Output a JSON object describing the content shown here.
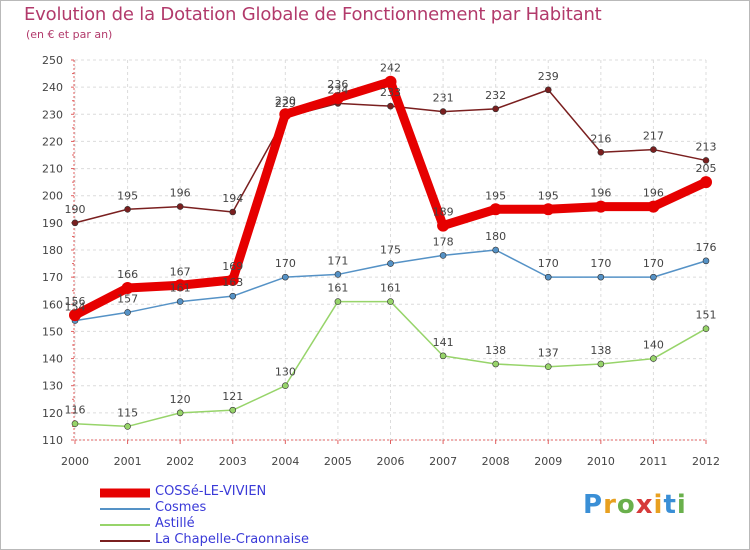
{
  "title": "Evolution de la Dotation Globale de Fonctionnement par Habitant",
  "subtitle": "(en € et par an)",
  "brand": {
    "letters": [
      "P",
      "r",
      "o",
      "x",
      "i",
      "t",
      "i"
    ],
    "colors": [
      "#3a8fd6",
      "#e8a020",
      "#6ab04c",
      "#d63a3a",
      "#e8a020",
      "#3a8fd6",
      "#6ab04c"
    ]
  },
  "chart_data": {
    "type": "line",
    "title": "Evolution de la Dotation Globale de Fonctionnement par Habitant",
    "ylabel": "(en € et par an)",
    "xlabel": "",
    "ylim": [
      110,
      250
    ],
    "yticks": [
      110,
      120,
      130,
      140,
      150,
      160,
      170,
      180,
      190,
      200,
      210,
      220,
      230,
      240,
      250
    ],
    "categories": [
      "2000",
      "2001",
      "2002",
      "2003",
      "2004",
      "2005",
      "2006",
      "2007",
      "2008",
      "2009",
      "2010",
      "2011",
      "2012"
    ],
    "grid": true,
    "legend_position": "bottom-left",
    "series": [
      {
        "name": "La Chapelle-Craonnaise",
        "color": "#7a1f1f",
        "emphasis": false,
        "values": [
          190,
          195,
          196,
          194,
          229,
          234,
          233,
          231,
          232,
          239,
          216,
          217,
          213
        ]
      },
      {
        "name": "Cosmes",
        "color": "#5592c6",
        "emphasis": false,
        "values": [
          154,
          157,
          161,
          163,
          170,
          171,
          175,
          178,
          180,
          170,
          170,
          170,
          176
        ]
      },
      {
        "name": "Astillé",
        "color": "#97d46a",
        "emphasis": false,
        "values": [
          116,
          115,
          120,
          121,
          130,
          161,
          161,
          141,
          138,
          137,
          138,
          140,
          151
        ]
      },
      {
        "name": "COSSé-LE-VIVIEN",
        "color": "#e60000",
        "emphasis": true,
        "values": [
          156,
          166,
          167,
          169,
          230,
          236,
          242,
          189,
          195,
          195,
          196,
          196,
          205
        ]
      }
    ],
    "legend": [
      "COSSé-LE-VIVIEN",
      "Cosmes",
      "Astillé",
      "La Chapelle-Craonnaise"
    ]
  }
}
